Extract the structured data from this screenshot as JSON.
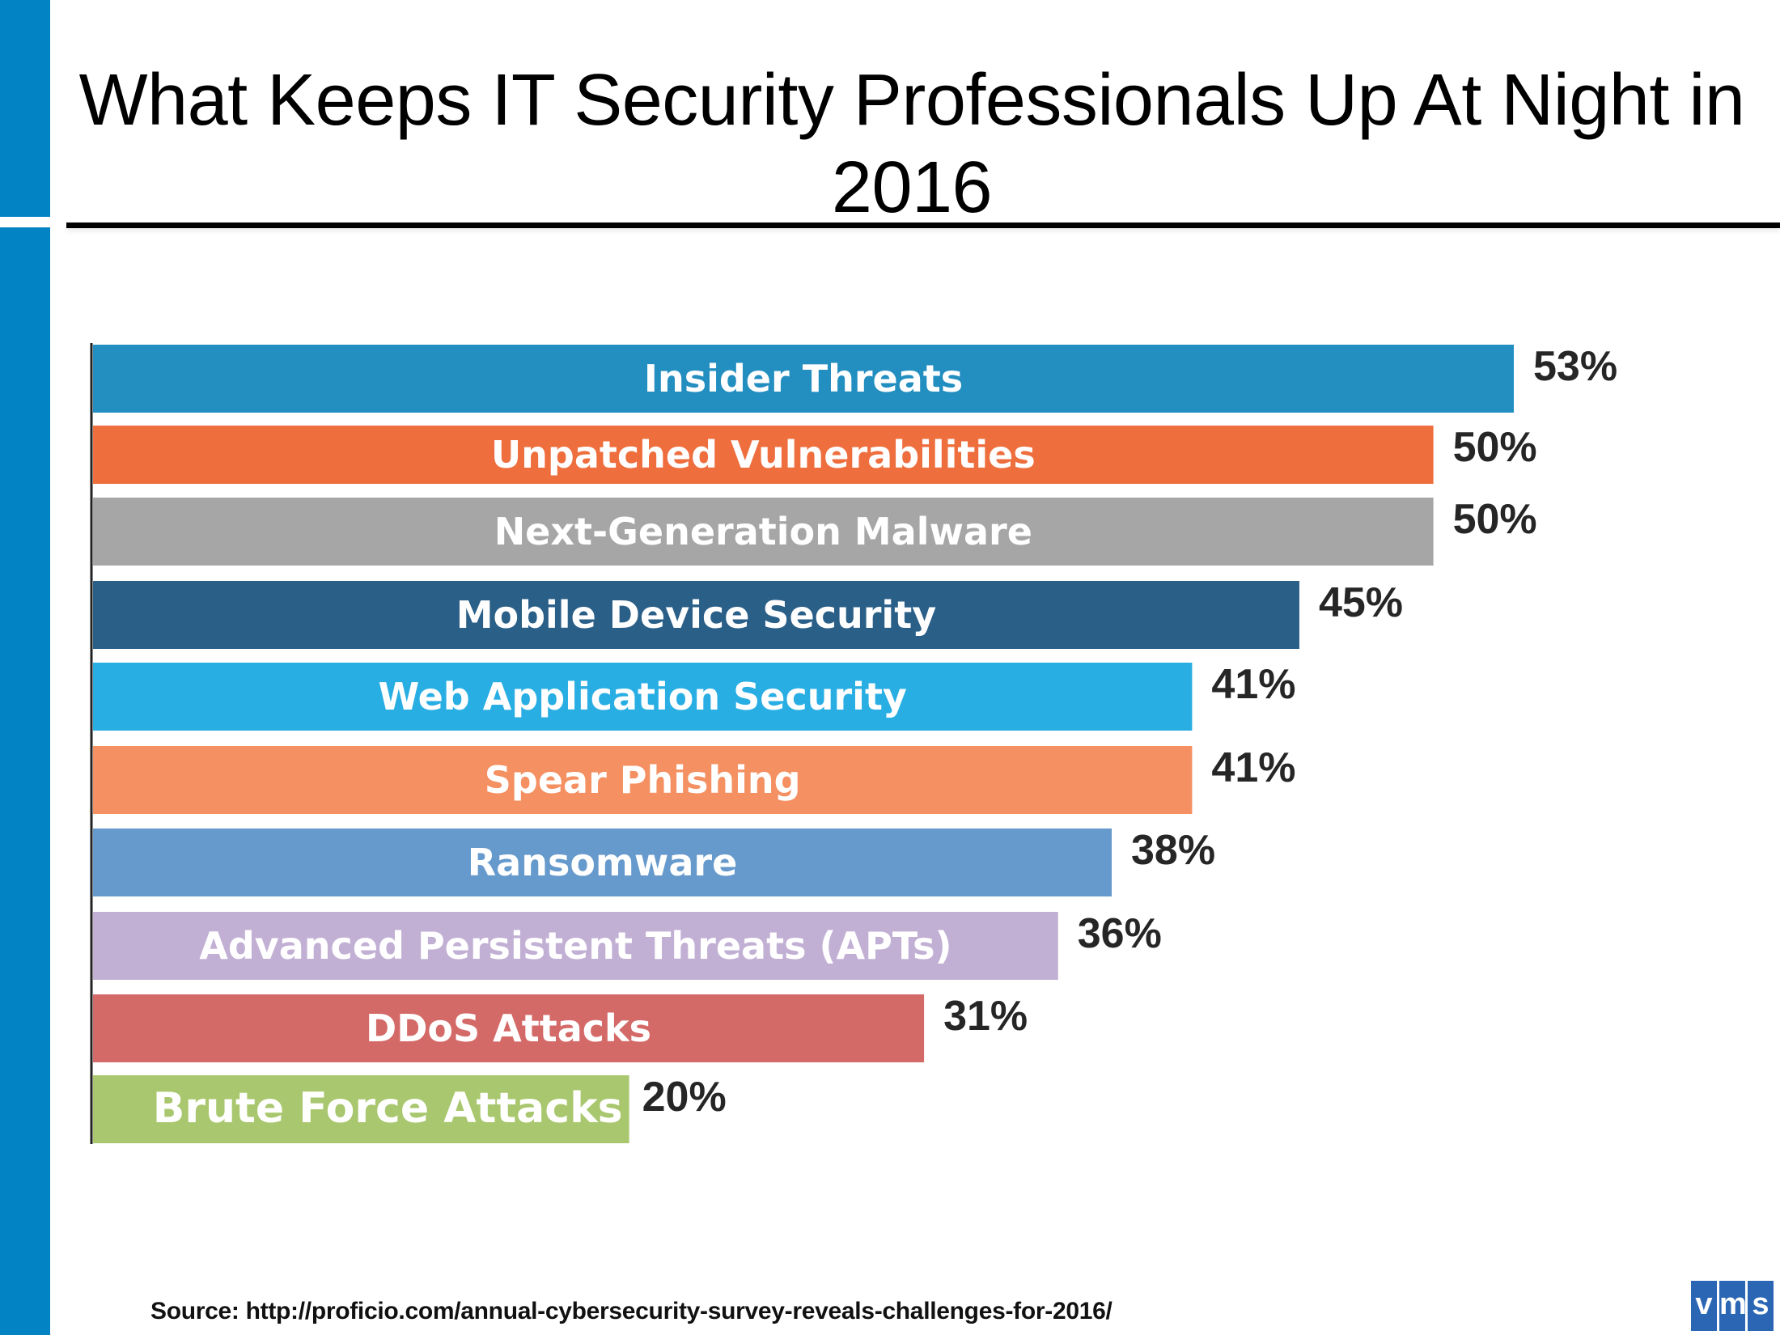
{
  "title": "What Keeps IT Security Professionals Up At Night in 2016",
  "source": "Source: http://proficio.com/annual-cybersecurity-survey-reveals-challenges-for-2016/",
  "logo": {
    "letters": [
      "v",
      "m",
      "s"
    ],
    "color": "#2b66b5"
  },
  "accent_color": "#0284c4",
  "chart_data": {
    "type": "bar",
    "orientation": "horizontal",
    "title": "What Keeps IT Security Professionals Up At Night in 2016",
    "xlabel": "",
    "ylabel": "",
    "unit": "%",
    "xlim": [
      0,
      53
    ],
    "grid": false,
    "legend": "none",
    "categories": [
      "Insider Threats",
      "Unpatched Vulnerabilities",
      "Next-Generation Malware",
      "Mobile Device Security",
      "Web Application Security",
      "Spear Phishing",
      "Ransomware",
      "Advanced Persistent Threats (APTs)",
      "DDoS Attacks",
      "Brute Force Attacks"
    ],
    "values": [
      53,
      50,
      50,
      45,
      41,
      41,
      38,
      36,
      31,
      20
    ],
    "value_labels": [
      "53%",
      "50%",
      "50%",
      "45%",
      "41%",
      "41%",
      "38%",
      "36%",
      "31%",
      "20%"
    ],
    "colors": [
      "#238ec0",
      "#ee6e3d",
      "#a6a6a6",
      "#2a5f88",
      "#29aee3",
      "#f49061",
      "#6699cc",
      "#c1b0d4",
      "#d46a68",
      "#a9c76e"
    ]
  }
}
